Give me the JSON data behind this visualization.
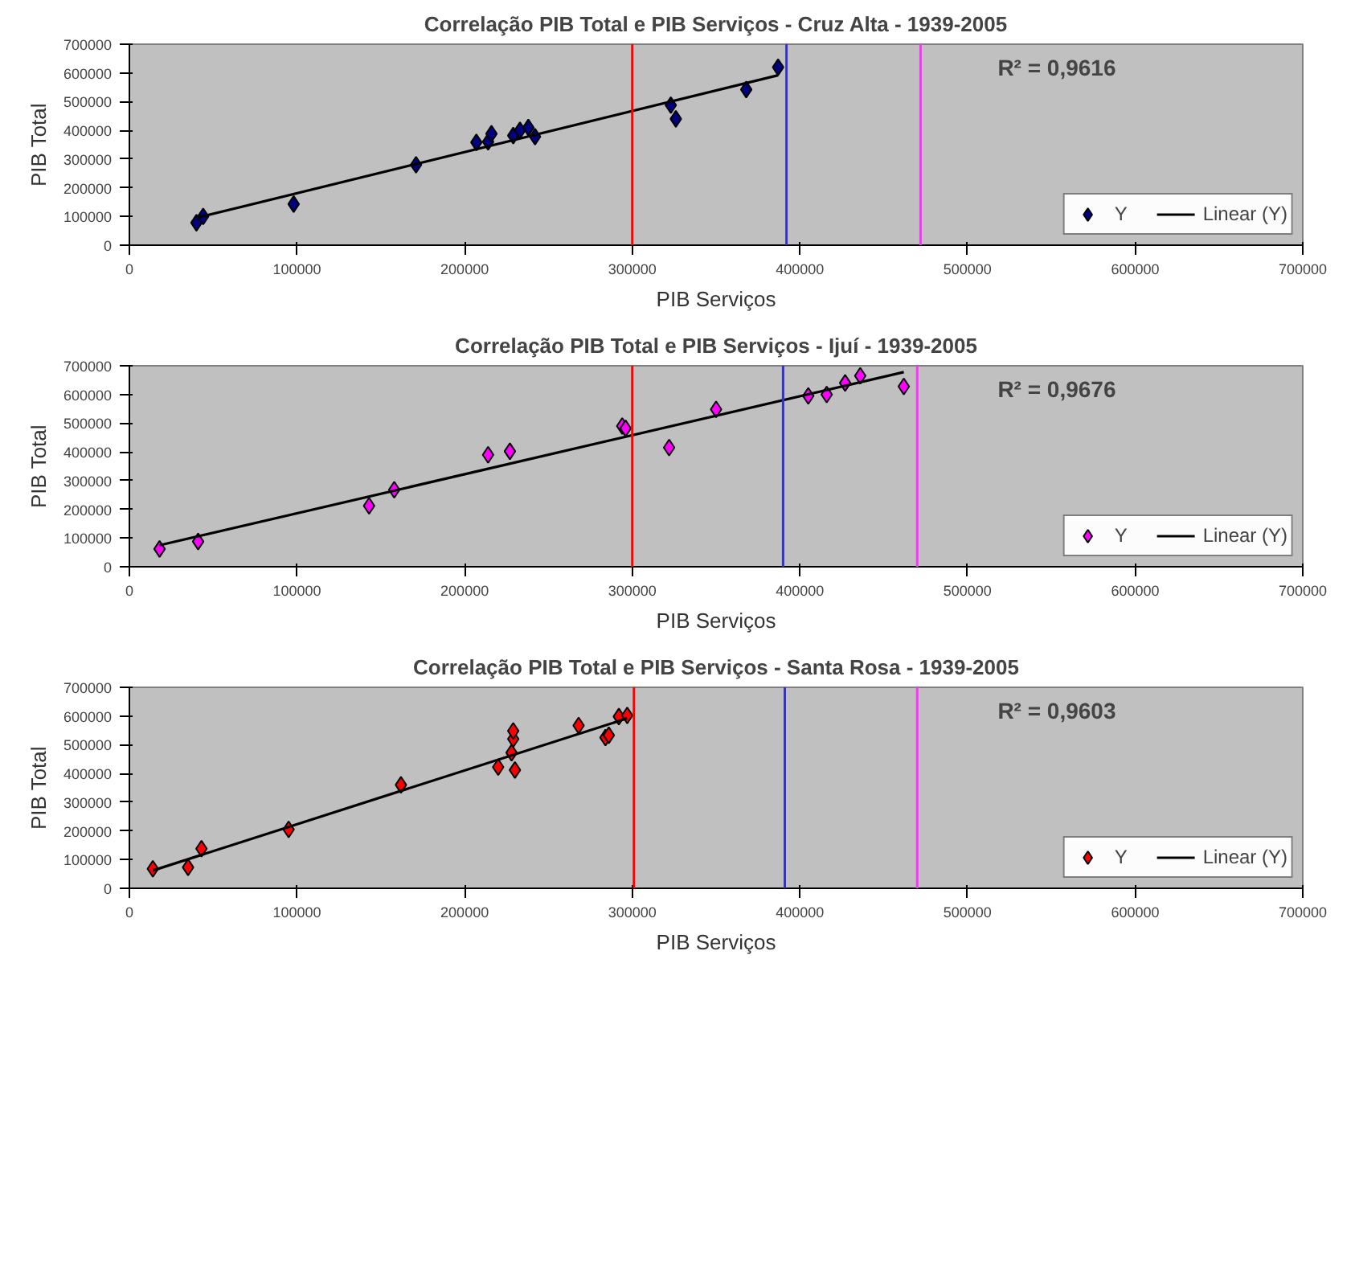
{
  "chart_data": [
    {
      "type": "scatter",
      "title": "Correlação PIB Total e PIB Serviços - Cruz Alta - 1939-2005",
      "xlabel": "PIB Serviços",
      "ylabel": "PIB Total",
      "xlim": [
        0,
        700000
      ],
      "ylim": [
        0,
        700000
      ],
      "xticks": [
        0,
        100000,
        200000,
        300000,
        400000,
        500000,
        600000,
        700000
      ],
      "yticks": [
        0,
        100000,
        200000,
        300000,
        400000,
        500000,
        600000,
        700000
      ],
      "legend": "bottom right",
      "annotations": [
        "R² = 0,9616"
      ],
      "series": [
        {
          "name": "Y",
          "marker": "diamond",
          "color": "#000080",
          "x": [
            40000,
            44000,
            98000,
            171000,
            207000,
            214000,
            216000,
            229000,
            233000,
            238000,
            242000,
            323000,
            326000,
            368000,
            387000
          ],
          "values": [
            78000,
            100000,
            143000,
            280000,
            358000,
            360000,
            388000,
            382000,
            400000,
            410000,
            378000,
            488000,
            440000,
            542000,
            620000
          ]
        },
        {
          "name": "Linear (Y)",
          "type": "line",
          "color": "#000000",
          "x": [
            40000,
            387000
          ],
          "values": [
            95000,
            592000
          ]
        }
      ],
      "ref_lines": [
        {
          "axis": "x",
          "value": 300000,
          "color": "#ff0000"
        },
        {
          "axis": "x",
          "value": 392000,
          "color": "#3333cc"
        },
        {
          "axis": "x",
          "value": 472000,
          "color": "#ff33ff"
        }
      ]
    },
    {
      "type": "scatter",
      "title": "Correlação PIB Total e PIB Serviços - Ijuí - 1939-2005",
      "xlabel": "PIB Serviços",
      "ylabel": "PIB Total",
      "xlim": [
        0,
        700000
      ],
      "ylim": [
        0,
        700000
      ],
      "xticks": [
        0,
        100000,
        200000,
        300000,
        400000,
        500000,
        600000,
        700000
      ],
      "yticks": [
        0,
        100000,
        200000,
        300000,
        400000,
        500000,
        600000,
        700000
      ],
      "legend": "bottom right",
      "annotations": [
        "R² = 0,9676"
      ],
      "series": [
        {
          "name": "Y",
          "marker": "diamond",
          "color": "#ff00ff",
          "x": [
            18000,
            41000,
            143000,
            158000,
            214000,
            227000,
            294000,
            296000,
            322000,
            350000,
            405000,
            416000,
            427000,
            436000,
            462000
          ],
          "values": [
            62000,
            88000,
            212000,
            268000,
            390000,
            402000,
            490000,
            482000,
            415000,
            548000,
            595000,
            600000,
            640000,
            665000,
            628000
          ]
        },
        {
          "name": "Linear (Y)",
          "type": "line",
          "color": "#000000",
          "x": [
            18000,
            462000
          ],
          "values": [
            75000,
            678000
          ]
        }
      ],
      "ref_lines": [
        {
          "axis": "x",
          "value": 300000,
          "color": "#ff0000"
        },
        {
          "axis": "x",
          "value": 390000,
          "color": "#3333cc"
        },
        {
          "axis": "x",
          "value": 470000,
          "color": "#ff33ff"
        }
      ]
    },
    {
      "type": "scatter",
      "title": "Correlação PIB Total e PIB Serviços - Santa Rosa - 1939-2005",
      "xlabel": "PIB Serviços",
      "ylabel": "PIB Total",
      "xlim": [
        0,
        700000
      ],
      "ylim": [
        0,
        700000
      ],
      "xticks": [
        0,
        100000,
        200000,
        300000,
        400000,
        500000,
        600000,
        700000
      ],
      "yticks": [
        0,
        100000,
        200000,
        300000,
        400000,
        500000,
        600000,
        700000
      ],
      "legend": "bottom right",
      "annotations": [
        "R² = 0,9603"
      ],
      "series": [
        {
          "name": "Y",
          "marker": "diamond",
          "color": "#ff0000",
          "x": [
            14000,
            35000,
            43000,
            95000,
            162000,
            220000,
            228000,
            229000,
            229000,
            230000,
            268000,
            284000,
            286000,
            292000,
            297000
          ],
          "values": [
            68000,
            73000,
            138000,
            205000,
            360000,
            422000,
            472000,
            520000,
            548000,
            412000,
            567000,
            525000,
            533000,
            598000,
            602000
          ]
        },
        {
          "name": "Linear (Y)",
          "type": "line",
          "color": "#000000",
          "x": [
            14000,
            297000
          ],
          "values": [
            62000,
            592000
          ]
        }
      ],
      "ref_lines": [
        {
          "axis": "x",
          "value": 301000,
          "color": "#ff0000"
        },
        {
          "axis": "x",
          "value": 391000,
          "color": "#3333cc"
        },
        {
          "axis": "x",
          "value": 470000,
          "color": "#ff33ff"
        }
      ]
    }
  ]
}
